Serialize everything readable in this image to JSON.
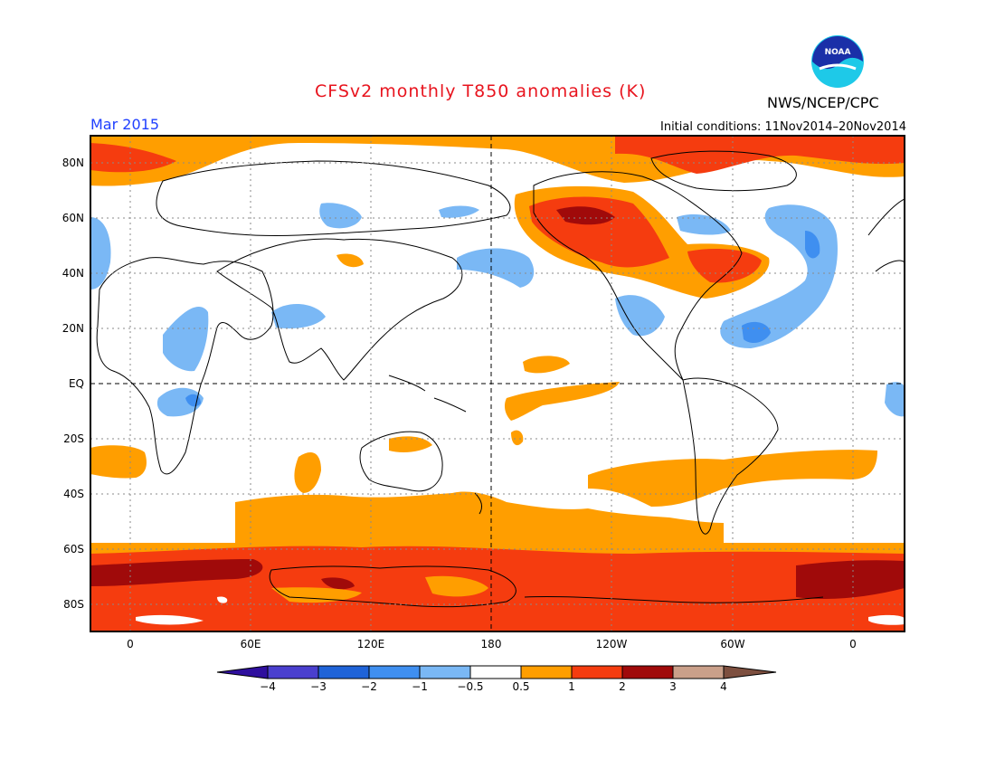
{
  "title": "CFSv2 monthly T850 anomalies (K)",
  "agency": "NWS/NCEP/CPC",
  "logo_text": "NOAA",
  "period": "Mar 2015",
  "initial_conditions": "Initial conditions: 11Nov2014–20Nov2014",
  "lat_labels": [
    "80N",
    "60N",
    "40N",
    "20N",
    "EQ",
    "20S",
    "40S",
    "60S",
    "80S"
  ],
  "lon_labels": [
    "0",
    "60E",
    "120E",
    "180",
    "120W",
    "60W",
    "0"
  ],
  "colorbar": {
    "labels": [
      "−4",
      "−3",
      "−2",
      "−1",
      "−0.5",
      "0.5",
      "1",
      "2",
      "3",
      "4"
    ],
    "colors": [
      "#2f0f9e",
      "#4a3fce",
      "#1f63d8",
      "#3f8ff0",
      "#7ab8f5",
      "#ffffff",
      "#ff9e00",
      "#f53c0f",
      "#a00a0a",
      "#caa08a",
      "#7d4f3f"
    ]
  },
  "colors": {
    "title": "#e8141e",
    "period": "#1f3fff",
    "land_outline": "#000000"
  }
}
